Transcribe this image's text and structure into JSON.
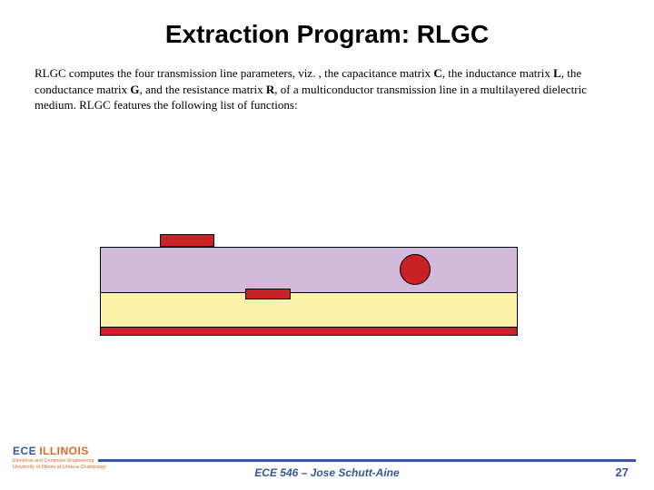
{
  "title": "Extraction Program: RLGC",
  "paragraph_html": "RLGC computes the four transmission line parameters, viz. , the capacitance matrix <b>C</b>, the inductance matrix <b>L</b>, the conductance matrix <b>G</b>, and the resistance matrix <b>R</b>, of a multiconductor transmission line in a multilayered dielectric medium.  RLGC features the following list of functions:",
  "diagram": {
    "colors": {
      "conductor": "#cc2027",
      "yellow_dielectric": "#fef2a8",
      "purple_dielectric": "#d2badb",
      "border": "#000000"
    }
  },
  "footer": {
    "course": "ECE 546 – Jose Schutt-Aine",
    "page": "27",
    "line_color": "#37569c",
    "text_color": "#37569c",
    "logo": {
      "ece": "ECE",
      "illinois": "ILLINOIS",
      "ece_color": "#37569c",
      "ill_color": "#d76b2a",
      "sub1": "Electrical and Computer Engineering",
      "sub2": "University of Illinois at Urbana-Champaign",
      "sub_color": "#d76b2a"
    }
  }
}
